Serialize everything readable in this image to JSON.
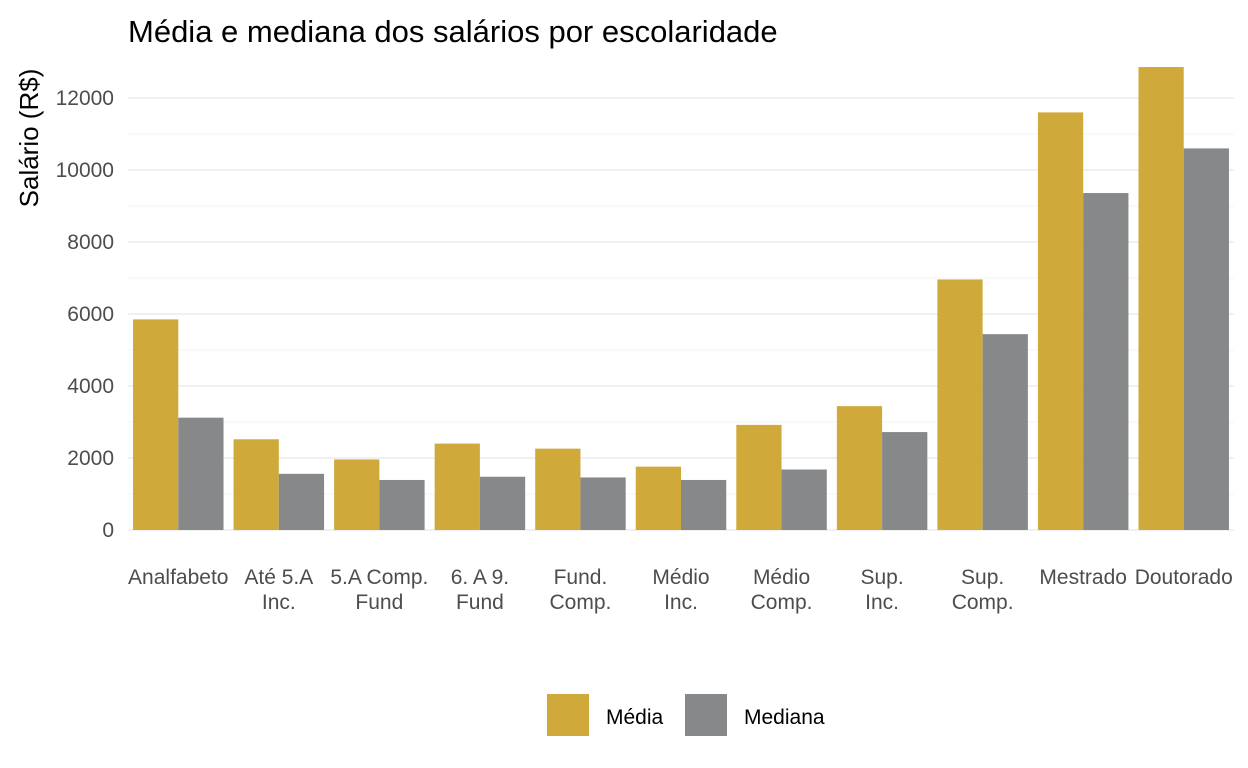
{
  "chart_data": {
    "type": "bar",
    "title": "Média e mediana dos salários por escolaridade",
    "xlabel": "",
    "ylabel": "Salário (R$)",
    "categories": [
      "Analfabeto",
      "Até 5.A Inc.",
      "5.A Comp. Fund",
      "6. A 9. Fund",
      "Fund. Comp.",
      "Médio Inc.",
      "Médio Comp.",
      "Sup. Inc.",
      "Sup. Comp.",
      "Mestrado",
      "Doutorado"
    ],
    "category_label_lines": [
      [
        "Analfabeto"
      ],
      [
        "Até 5.A",
        "Inc."
      ],
      [
        "5.A Comp.",
        "Fund"
      ],
      [
        "6. A 9.",
        "Fund"
      ],
      [
        "Fund.",
        "Comp."
      ],
      [
        "Médio",
        "Inc."
      ],
      [
        "Médio",
        "Comp."
      ],
      [
        "Sup.",
        "Inc."
      ],
      [
        "Sup.",
        "Comp."
      ],
      [
        "Mestrado"
      ],
      [
        "Doutorado"
      ]
    ],
    "series": [
      {
        "name": "Média",
        "color": "#CFAA3A",
        "values": [
          5850,
          2520,
          1960,
          2400,
          2260,
          1760,
          2920,
          3440,
          6960,
          11600,
          12860
        ]
      },
      {
        "name": "Mediana",
        "color": "#86888A",
        "values": [
          3120,
          1560,
          1390,
          1480,
          1460,
          1390,
          1680,
          2720,
          5440,
          9360,
          10600
        ]
      }
    ],
    "ylim": [
      0,
      13000
    ],
    "yticks": [
      0,
      2000,
      4000,
      6000,
      8000,
      10000,
      12000
    ],
    "grid": true,
    "legend_position": "bottom"
  }
}
